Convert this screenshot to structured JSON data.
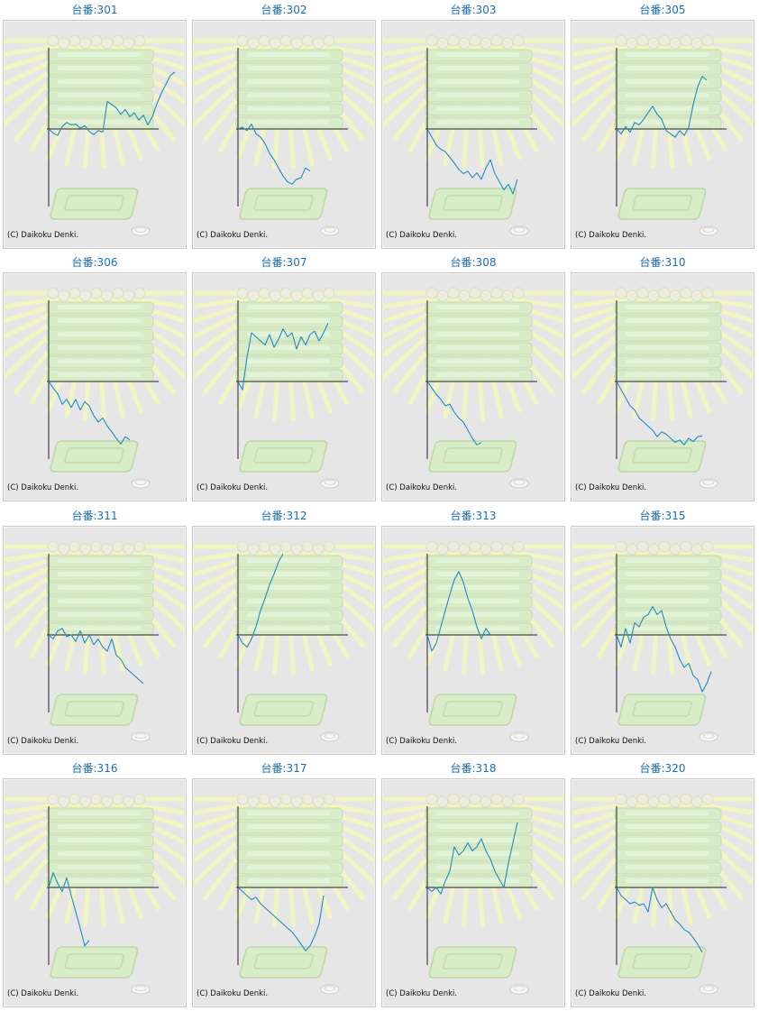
{
  "copyright": "(C) Daikoku Denki.",
  "colors": {
    "line": "#1f8cc4",
    "axis": "#222222",
    "title": "#1a6fb4",
    "panel": "#e6e6e6"
  },
  "chart_data": [
    {
      "type": "line",
      "title": "台番:301",
      "values": [
        0,
        -5,
        -8,
        3,
        8,
        5,
        6,
        1,
        4,
        -3,
        -7,
        -2,
        -4,
        34,
        30,
        26,
        18,
        24,
        15,
        20,
        11,
        17,
        5,
        15,
        31,
        44,
        55,
        66,
        70
      ]
    },
    {
      "type": "line",
      "title": "台番:302",
      "values": [
        0,
        2,
        -2,
        6,
        -6,
        -10,
        -18,
        -30,
        -38,
        -48,
        -58,
        -65,
        -68,
        -62,
        -60,
        -48,
        -52
      ]
    },
    {
      "type": "line",
      "title": "台番:303",
      "values": [
        0,
        -10,
        -20,
        -25,
        -28,
        -35,
        -42,
        -50,
        -55,
        -52,
        -60,
        -54,
        -62,
        -48,
        -38,
        -55,
        -65,
        -75,
        -68,
        -80,
        -62
      ]
    },
    {
      "type": "line",
      "title": "台番:305",
      "values": [
        0,
        -6,
        3,
        -4,
        8,
        5,
        12,
        20,
        28,
        18,
        12,
        -2,
        -6,
        -10,
        -2,
        -8,
        2,
        30,
        52,
        65,
        60
      ]
    },
    {
      "type": "line",
      "title": "台番:306",
      "values": [
        0,
        -8,
        -15,
        -28,
        -22,
        -32,
        -22,
        -35,
        -25,
        -30,
        -42,
        -50,
        -45,
        -55,
        -62,
        -70,
        -77,
        -68,
        -72
      ]
    },
    {
      "type": "line",
      "title": "台番:307",
      "values": [
        0,
        -10,
        30,
        60,
        55,
        50,
        45,
        58,
        42,
        52,
        65,
        55,
        60,
        40,
        55,
        45,
        58,
        62,
        50,
        60,
        72
      ]
    },
    {
      "type": "line",
      "title": "台番:308",
      "values": [
        0,
        -8,
        -16,
        -22,
        -30,
        -28,
        -38,
        -45,
        -50,
        -60,
        -70,
        -78,
        -75
      ]
    },
    {
      "type": "line",
      "title": "台番:310",
      "values": [
        0,
        -10,
        -20,
        -30,
        -35,
        -45,
        -50,
        -55,
        -60,
        -68,
        -62,
        -65,
        -70,
        -75,
        -72,
        -78,
        -70,
        -74,
        -68,
        -67
      ]
    },
    {
      "type": "line",
      "title": "台番:311",
      "values": [
        0,
        -5,
        5,
        8,
        -2,
        0,
        -8,
        5,
        -10,
        0,
        -12,
        -5,
        -15,
        -20,
        -5,
        -25,
        -30,
        -40,
        -45,
        -50,
        -55,
        -60
      ]
    },
    {
      "type": "line",
      "title": "台番:312",
      "values": [
        0,
        -10,
        -15,
        -5,
        10,
        30,
        45,
        62,
        75,
        90,
        102
      ]
    },
    {
      "type": "line",
      "title": "台番:313",
      "values": [
        0,
        -20,
        -10,
        10,
        30,
        50,
        68,
        78,
        65,
        45,
        30,
        10,
        -5,
        8,
        0
      ]
    },
    {
      "type": "line",
      "title": "台番:315",
      "values": [
        0,
        -15,
        8,
        -10,
        15,
        10,
        22,
        25,
        35,
        25,
        30,
        10,
        -5,
        -15,
        -30,
        -40,
        -35,
        -50,
        -55,
        -70,
        -60,
        -45
      ]
    },
    {
      "type": "line",
      "title": "台番:316",
      "values": [
        0,
        18,
        5,
        -5,
        12,
        -10,
        -30,
        -50,
        -72,
        -65
      ]
    },
    {
      "type": "line",
      "title": "台番:317",
      "values": [
        0,
        -5,
        -10,
        -15,
        -12,
        -20,
        -25,
        -30,
        -35,
        -40,
        -45,
        -50,
        -55,
        -62,
        -70,
        -78,
        -72,
        -60,
        -45,
        -10
      ]
    },
    {
      "type": "line",
      "title": "台番:318",
      "values": [
        0,
        -5,
        0,
        -8,
        8,
        20,
        50,
        40,
        45,
        55,
        45,
        50,
        60,
        45,
        35,
        20,
        10,
        0,
        30,
        55,
        80
      ]
    },
    {
      "type": "line",
      "title": "台番:320",
      "values": [
        0,
        -10,
        -15,
        -20,
        -18,
        -22,
        -20,
        -30,
        0,
        -15,
        -25,
        -20,
        -30,
        -40,
        -45,
        -52,
        -55,
        -62,
        -70,
        -80
      ]
    }
  ]
}
